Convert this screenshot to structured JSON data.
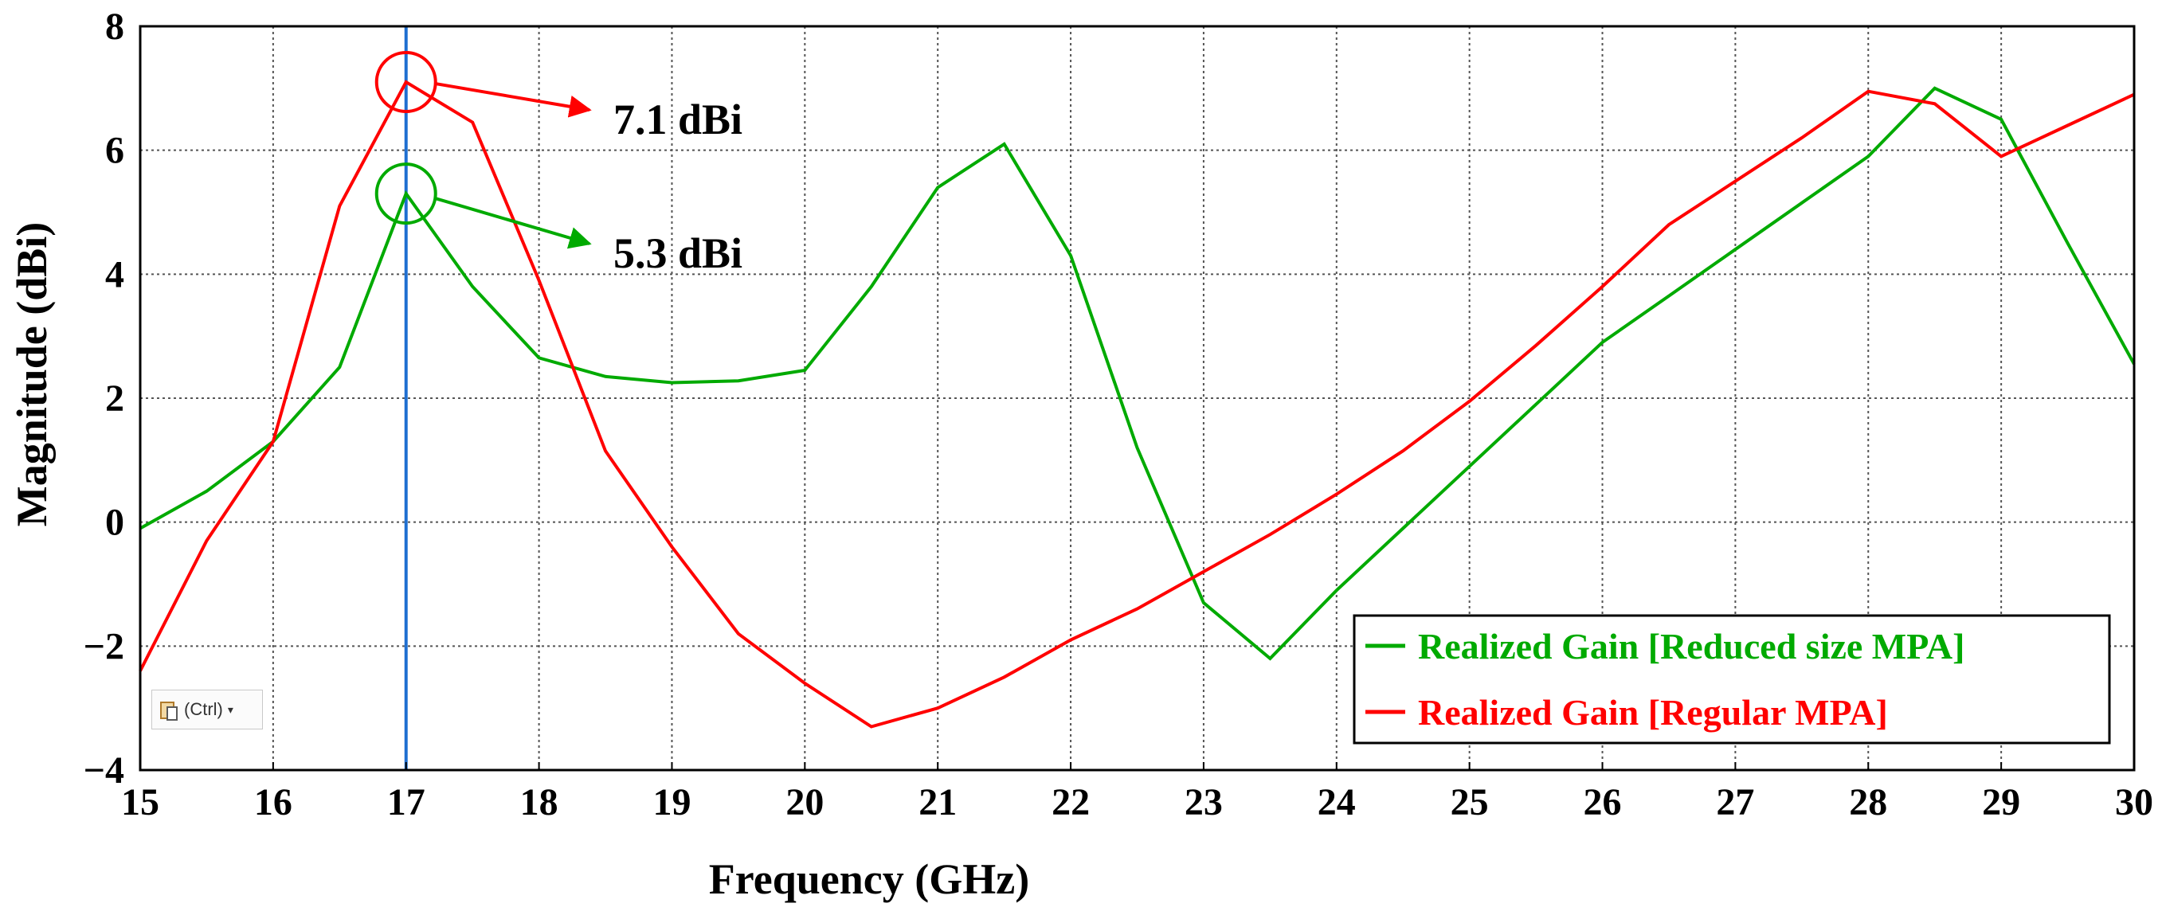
{
  "chart_data": {
    "type": "line",
    "title": "",
    "xlabel": "Frequency (GHz)",
    "ylabel": "Magnitude (dBi)",
    "xlim": [
      15,
      30
    ],
    "ylim": [
      -4,
      8
    ],
    "x_ticks": [
      "15",
      "16",
      "17",
      "18",
      "19",
      "20",
      "21",
      "22",
      "23",
      "24",
      "25",
      "26",
      "27",
      "28",
      "29",
      "30"
    ],
    "y_ticks": [
      "−4",
      "−2",
      "0",
      "2",
      "4",
      "6",
      "8"
    ],
    "grid": true,
    "legend_position": "bottom-right",
    "marker_line_x": 17,
    "series": [
      {
        "name": "Realized Gain [Reduced size MPA]",
        "color": "#00aa00",
        "x": [
          15,
          15.5,
          16,
          16.5,
          17,
          17.5,
          18,
          18.5,
          19,
          19.5,
          20,
          20.5,
          21,
          21.5,
          22,
          22.5,
          23,
          23.5,
          24,
          24.5,
          25,
          25.5,
          26,
          26.5,
          27,
          27.5,
          28,
          28.5,
          29,
          29.5,
          30
        ],
        "values": [
          -0.1,
          0.5,
          1.3,
          2.5,
          5.3,
          3.8,
          2.65,
          2.35,
          2.25,
          2.28,
          2.45,
          3.8,
          5.4,
          6.1,
          4.3,
          1.2,
          -1.3,
          -2.2,
          -1.1,
          -0.1,
          0.9,
          1.9,
          2.9,
          3.65,
          4.4,
          5.15,
          5.9,
          7.0,
          6.5,
          4.5,
          2.55
        ]
      },
      {
        "name": "Realized Gain [Regular MPA]",
        "color": "#ff0000",
        "x": [
          15,
          15.5,
          16,
          16.5,
          17,
          17.5,
          18,
          18.5,
          19,
          19.5,
          20,
          20.5,
          21,
          21.5,
          22,
          22.5,
          23,
          23.5,
          24,
          24.5,
          25,
          25.5,
          26,
          26.5,
          27,
          27.5,
          28,
          28.5,
          29,
          29.5,
          30
        ],
        "values": [
          -2.4,
          -0.3,
          1.3,
          5.1,
          7.1,
          6.45,
          3.9,
          1.15,
          -0.4,
          -1.8,
          -2.6,
          -3.3,
          -3.0,
          -2.5,
          -1.9,
          -1.4,
          -0.8,
          -0.2,
          0.45,
          1.15,
          1.95,
          2.85,
          3.8,
          4.8,
          5.5,
          6.2,
          6.95,
          6.75,
          5.9,
          6.4,
          6.9
        ]
      }
    ],
    "annotations": [
      {
        "text": "7.1 dBi",
        "x": 17,
        "y": 7.1,
        "color": "#ff0000"
      },
      {
        "text": "5.3 dBi",
        "x": 17,
        "y": 5.3,
        "color": "#00aa00"
      }
    ],
    "colors": {
      "marker_line": "#1f6fd1",
      "grid": "#555555",
      "axis": "#000000"
    }
  },
  "paste_widget": {
    "label": "(Ctrl)",
    "icon": "clipboard-paste-icon"
  }
}
